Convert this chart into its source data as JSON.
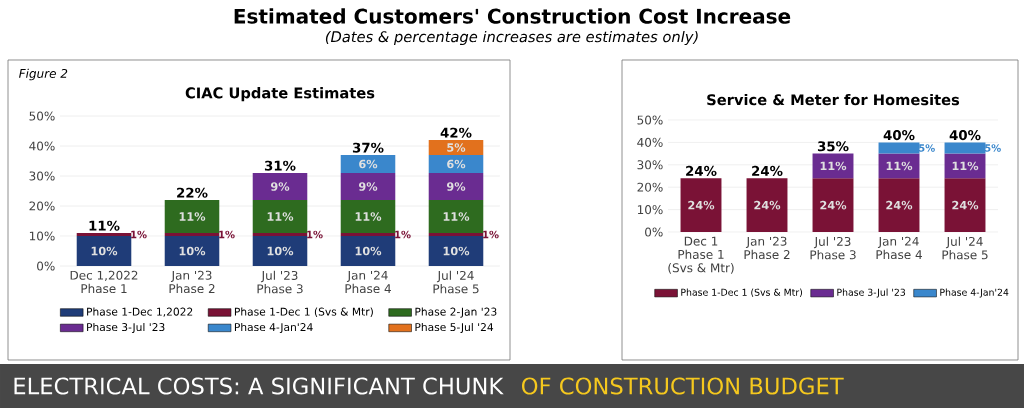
{
  "chart_data": [
    {
      "type": "bar",
      "stacked": true,
      "title": "CIAC Update Estimates",
      "annotations": [
        "Estimated Customers' Construction Cost Increase",
        "(Dates & percentage increases are estimates only)",
        "Figure 2",
        "ELECTRICAL COSTS: A SIGNIFICANT CHUNK",
        "OF CONSTRUCTION BUDGET"
      ],
      "categories": [
        "Dec 1,2022\nPhase 1",
        "Jan '23\nPhase 2",
        "Jul '23\nPhase 3",
        "Jan '24\nPhase 4",
        "Jul '24\nPhase 5"
      ],
      "ylim": [
        0,
        50
      ],
      "yticks": [
        {
          "value": 0,
          "label": "0%"
        },
        {
          "value": 10,
          "label": "10%"
        },
        {
          "value": 20,
          "label": "20%"
        },
        {
          "value": 30,
          "label": "30%"
        },
        {
          "value": 40,
          "label": "40%"
        },
        {
          "value": 50,
          "label": "50%"
        }
      ],
      "grid": "y",
      "legend": "bottom",
      "totals": [
        "11%",
        "22%",
        "31%",
        "37%",
        "42%"
      ],
      "series": [
        {
          "name": "Phase 1-Dec 1,2022",
          "color": "#1f3c78",
          "values": [
            10,
            10,
            10,
            10,
            10
          ],
          "value_labels": [
            "10%",
            "10%",
            "10%",
            "10%",
            "10%"
          ]
        },
        {
          "name": "Phase 1-Dec 1 (Svs & Mtr)",
          "color": "#7a1236",
          "values": [
            1,
            1,
            1,
            1,
            1
          ],
          "value_labels": [
            "1%",
            "1%",
            "1%",
            "1%",
            "1%"
          ]
        },
        {
          "name": "Phase 2-Jan '23",
          "color": "#2e6b1f",
          "values": [
            null,
            11,
            11,
            11,
            11
          ],
          "value_labels": [
            null,
            "11%",
            "11%",
            "11%",
            "11%"
          ]
        },
        {
          "name": "Phase 3-Jul '23",
          "color": "#6a2c91",
          "values": [
            null,
            null,
            9,
            9,
            9
          ],
          "value_labels": [
            null,
            null,
            "9%",
            "9%",
            "9%"
          ]
        },
        {
          "name": "Phase 4-Jan'24",
          "color": "#3a87cc",
          "values": [
            null,
            null,
            null,
            6,
            6
          ],
          "value_labels": [
            null,
            null,
            null,
            "6%",
            "6%"
          ]
        },
        {
          "name": "Phase 5-Jul '24",
          "color": "#e2711d",
          "values": [
            null,
            null,
            null,
            null,
            5
          ],
          "value_labels": [
            null,
            null,
            null,
            null,
            "5%"
          ]
        }
      ]
    },
    {
      "type": "bar",
      "stacked": true,
      "title": "Service & Meter for Homesites",
      "categories": [
        "Dec 1\nPhase 1\n(Svs & Mtr)",
        "Jan '23\nPhase 2",
        "Jul '23\nPhase 3",
        "Jan '24\nPhase 4",
        "Jul '24\nPhase 5"
      ],
      "ylim": [
        0,
        50
      ],
      "yticks": [
        {
          "value": 0,
          "label": "0%"
        },
        {
          "value": 10,
          "label": "10%"
        },
        {
          "value": 20,
          "label": "20%"
        },
        {
          "value": 30,
          "label": "30%"
        },
        {
          "value": 40,
          "label": "40%"
        },
        {
          "value": 50,
          "label": "50%"
        }
      ],
      "grid": "y",
      "legend": "bottom",
      "totals": [
        "24%",
        "24%",
        "35%",
        "40%",
        "40%"
      ],
      "series": [
        {
          "name": "Phase 1-Dec 1 (Svs & Mtr)",
          "color": "#7a1236",
          "values": [
            24,
            24,
            24,
            24,
            24
          ],
          "value_labels": [
            "24%",
            "24%",
            "24%",
            "24%",
            "24%"
          ]
        },
        {
          "name": "Phase 3-Jul '23",
          "color": "#6a2c91",
          "values": [
            null,
            null,
            11,
            11,
            11
          ],
          "value_labels": [
            null,
            null,
            "11%",
            "11%",
            "11%"
          ]
        },
        {
          "name": "Phase 4-Jan'24",
          "color": "#3a87cc",
          "values": [
            null,
            null,
            null,
            5,
            5
          ],
          "value_labels": [
            null,
            null,
            null,
            "5%",
            "5%"
          ]
        }
      ]
    }
  ]
}
